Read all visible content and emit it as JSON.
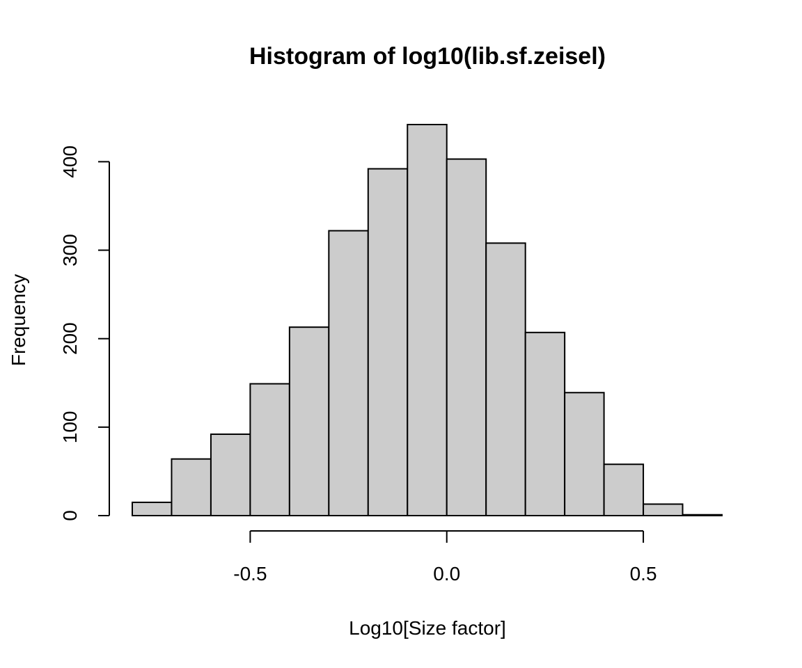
{
  "chart_data": {
    "type": "bar",
    "title": "Histogram of log10(lib.sf.zeisel)",
    "xlabel": "Log10[Size factor]",
    "ylabel": "Frequency",
    "bin_edges": [
      -0.8,
      -0.7,
      -0.6,
      -0.5,
      -0.4,
      -0.3,
      -0.2,
      -0.1,
      0.0,
      0.1,
      0.2,
      0.3,
      0.4,
      0.5,
      0.6,
      0.7
    ],
    "values": [
      15,
      64,
      92,
      149,
      213,
      322,
      392,
      442,
      403,
      308,
      207,
      139,
      58,
      13,
      1
    ],
    "xlim": [
      -0.8,
      0.7
    ],
    "ylim": [
      0,
      442
    ],
    "x_ticks": [
      -0.5,
      0.0,
      0.5
    ],
    "x_tick_labels": [
      "-0.5",
      "0.0",
      "0.5"
    ],
    "y_ticks": [
      0,
      100,
      200,
      300,
      400
    ],
    "y_tick_labels": [
      "0",
      "100",
      "200",
      "300",
      "400"
    ],
    "grid": false,
    "bar_color": "#cccccc",
    "edge_color": "#000000"
  }
}
